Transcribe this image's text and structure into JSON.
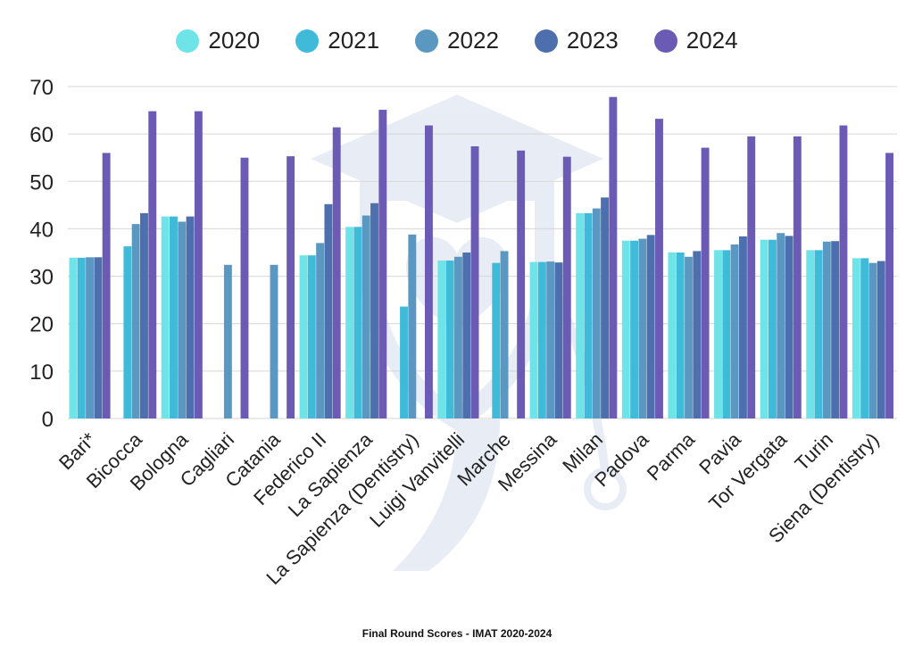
{
  "chart_data": {
    "type": "bar",
    "title": "Final Round Scores - IMAT 2020-2024",
    "xlabel": "",
    "ylabel": "",
    "ylim": [
      0,
      70
    ],
    "yticks": [
      0,
      10,
      20,
      30,
      40,
      50,
      60,
      70
    ],
    "grid": true,
    "legend_position": "top",
    "categories": [
      "Bari*",
      "Bicocca",
      "Bologna",
      "Cagliari",
      "Catania",
      "Federico II",
      "La Sapienza",
      "La Sapienza (Dentistry)",
      "Luigi Vanvitelli",
      "Marche",
      "Messina",
      "Milan",
      "Padova",
      "Parma",
      "Pavia",
      "Tor Vergata",
      "Turin",
      "Siena (Dentistry)"
    ],
    "series": [
      {
        "name": "2020",
        "color": "#6ee3e8",
        "values": [
          33.9,
          null,
          42.6,
          null,
          null,
          34.4,
          40.4,
          null,
          33.3,
          null,
          33.0,
          43.3,
          37.5,
          35.0,
          35.5,
          37.7,
          35.5,
          33.8
        ]
      },
      {
        "name": "2021",
        "color": "#3fbad8",
        "values": [
          33.9,
          36.3,
          42.6,
          null,
          null,
          34.4,
          40.4,
          23.6,
          33.3,
          32.8,
          33.0,
          43.3,
          37.5,
          35.0,
          35.5,
          37.7,
          35.5,
          33.8
        ]
      },
      {
        "name": "2022",
        "color": "#5a98c2",
        "values": [
          34.0,
          41.0,
          41.5,
          32.4,
          32.4,
          37.0,
          42.8,
          38.8,
          34.1,
          35.3,
          33.1,
          44.3,
          37.9,
          34.1,
          36.7,
          39.1,
          37.3,
          32.8
        ]
      },
      {
        "name": "2023",
        "color": "#4d6fae",
        "values": [
          34.0,
          43.3,
          42.6,
          null,
          null,
          45.2,
          45.4,
          null,
          35.0,
          null,
          32.9,
          46.6,
          38.7,
          35.3,
          38.4,
          38.5,
          37.4,
          33.2
        ]
      },
      {
        "name": "2024",
        "color": "#6b5bb5",
        "values": [
          56.0,
          64.8,
          64.8,
          55.0,
          55.3,
          61.4,
          65.1,
          61.8,
          57.4,
          56.5,
          55.2,
          67.8,
          63.2,
          57.1,
          59.5,
          59.5,
          61.8,
          56.0
        ]
      }
    ]
  }
}
